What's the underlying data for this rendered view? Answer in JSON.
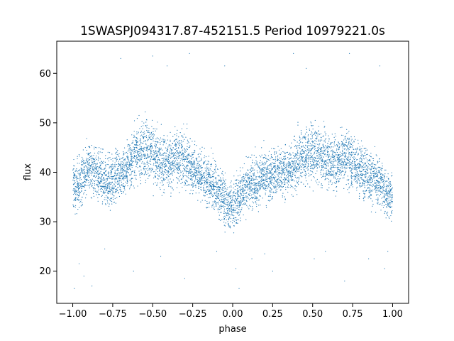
{
  "chart_data": {
    "type": "scatter",
    "title": "1SWASPJ094317.87-452151.5 Period 10979221.0s",
    "xlabel": "phase",
    "ylabel": "flux",
    "xlim": [
      -1.1,
      1.1
    ],
    "ylim": [
      13.5,
      66.5
    ],
    "x_ticks": [
      -1.0,
      -0.75,
      -0.5,
      -0.25,
      0.0,
      0.25,
      0.5,
      0.75,
      1.0
    ],
    "x_tick_labels": [
      "−1.00",
      "−0.75",
      "−0.50",
      "−0.25",
      "0.00",
      "0.25",
      "0.50",
      "0.75",
      "1.00"
    ],
    "y_ticks": [
      20,
      30,
      40,
      50,
      60
    ],
    "y_tick_labels": [
      "20",
      "30",
      "40",
      "50",
      "60"
    ],
    "grid": false,
    "marker_color": "#1f77b4",
    "series": [
      {
        "x": [
          -1.0,
          -0.98,
          -0.96,
          -0.94,
          -0.92,
          -0.9,
          -0.88,
          -0.86,
          -0.84,
          -0.82,
          -0.8,
          -0.78,
          -0.76,
          -0.74,
          -0.72,
          -0.7,
          -0.68,
          -0.66,
          -0.64,
          -0.62,
          -0.6,
          -0.58,
          -0.56,
          -0.54,
          -0.52,
          -0.5,
          -0.48,
          -0.46,
          -0.44,
          -0.42,
          -0.4,
          -0.38,
          -0.36,
          -0.34,
          -0.32,
          -0.3,
          -0.28,
          -0.26,
          -0.24,
          -0.22,
          -0.2,
          -0.18,
          -0.16,
          -0.14,
          -0.12,
          -0.1,
          -0.08,
          -0.06,
          -0.04,
          -0.02,
          0.0,
          0.02,
          0.04,
          0.06,
          0.08,
          0.1,
          0.12,
          0.14,
          0.16,
          0.18,
          0.2,
          0.22,
          0.24,
          0.26,
          0.28,
          0.3,
          0.32,
          0.34,
          0.36,
          0.38,
          0.4,
          0.42,
          0.44,
          0.46,
          0.48,
          0.5,
          0.52,
          0.54,
          0.56,
          0.58,
          0.6,
          0.62,
          0.64,
          0.66,
          0.68,
          0.7,
          0.72,
          0.74,
          0.76,
          0.78,
          0.8,
          0.82,
          0.84,
          0.86,
          0.88,
          0.9,
          0.92,
          0.94,
          0.96,
          0.98,
          1.0
        ],
        "y": [
          37,
          37,
          38,
          39,
          40,
          41,
          41,
          40,
          39,
          39,
          38,
          38,
          38,
          39,
          40,
          40,
          40,
          41,
          42,
          43,
          44,
          44,
          45,
          45,
          44,
          43,
          43,
          42,
          42,
          42,
          42,
          42,
          43,
          43,
          43,
          42,
          42,
          41,
          41,
          40,
          39,
          39,
          38,
          38,
          37,
          37,
          36,
          35,
          34,
          33,
          33,
          34,
          35,
          36,
          37,
          38,
          38,
          38,
          38,
          39,
          39,
          39,
          39,
          40,
          40,
          40,
          40,
          40,
          41,
          41,
          42,
          43,
          43,
          44,
          44,
          44,
          44,
          43,
          43,
          43,
          42,
          42,
          42,
          42,
          43,
          43,
          43,
          42,
          42,
          41,
          41,
          40,
          40,
          39,
          39,
          38,
          38,
          37,
          36,
          35,
          35
        ],
        "spread": [
          4.5,
          4.5,
          4.5,
          4.5,
          4.5,
          4.5,
          4.5,
          4.5,
          4.5,
          4.5,
          4.5,
          4.5,
          4.5,
          4.5,
          4.5,
          4.5,
          4.5,
          4.5,
          4.5,
          4.5,
          5,
          5,
          5.5,
          5.5,
          5.5,
          5.5,
          5,
          5,
          5,
          5,
          5,
          5,
          5,
          5,
          5,
          5,
          5,
          4.5,
          4.5,
          4.5,
          4.5,
          4.5,
          4.5,
          4.5,
          4.5,
          4.5,
          4.5,
          4.5,
          4.5,
          4.5,
          4.5,
          4.5,
          4.5,
          4.5,
          4.5,
          4.5,
          4.5,
          4.5,
          4.5,
          4.5,
          4.5,
          4.5,
          4.5,
          4.5,
          4.5,
          4.5,
          4.5,
          4.5,
          4.5,
          4.5,
          5,
          5,
          5,
          5.5,
          5.5,
          5.5,
          5.5,
          5,
          5,
          5,
          5,
          5,
          5,
          5,
          5,
          5,
          5,
          5,
          5,
          4.5,
          4.5,
          4.5,
          4.5,
          4.5,
          4.5,
          4.5,
          4.5,
          4.5,
          4.5,
          4.5,
          4.5
        ]
      }
    ],
    "outliers": [
      {
        "x": -0.99,
        "y": 16.5
      },
      {
        "x": -0.96,
        "y": 21.5
      },
      {
        "x": -0.93,
        "y": 19.0
      },
      {
        "x": -0.88,
        "y": 17.0
      },
      {
        "x": -0.8,
        "y": 24.5
      },
      {
        "x": -0.7,
        "y": 63.0
      },
      {
        "x": -0.62,
        "y": 20.0
      },
      {
        "x": -0.5,
        "y": 63.5
      },
      {
        "x": -0.45,
        "y": 23.0
      },
      {
        "x": -0.41,
        "y": 61.5
      },
      {
        "x": -0.3,
        "y": 18.5
      },
      {
        "x": -0.27,
        "y": 64.0
      },
      {
        "x": -0.1,
        "y": 24.0
      },
      {
        "x": -0.05,
        "y": 61.5
      },
      {
        "x": 0.02,
        "y": 20.5
      },
      {
        "x": 0.04,
        "y": 16.5
      },
      {
        "x": 0.12,
        "y": 22.5
      },
      {
        "x": 0.2,
        "y": 23.5
      },
      {
        "x": 0.25,
        "y": 20.0
      },
      {
        "x": 0.38,
        "y": 64.0
      },
      {
        "x": 0.46,
        "y": 61.0
      },
      {
        "x": 0.51,
        "y": 22.5
      },
      {
        "x": 0.58,
        "y": 24.0
      },
      {
        "x": 0.7,
        "y": 18.0
      },
      {
        "x": 0.73,
        "y": 64.0
      },
      {
        "x": 0.85,
        "y": 22.5
      },
      {
        "x": 0.92,
        "y": 61.5
      },
      {
        "x": 0.95,
        "y": 20.5
      },
      {
        "x": 0.97,
        "y": 24.0
      }
    ]
  }
}
